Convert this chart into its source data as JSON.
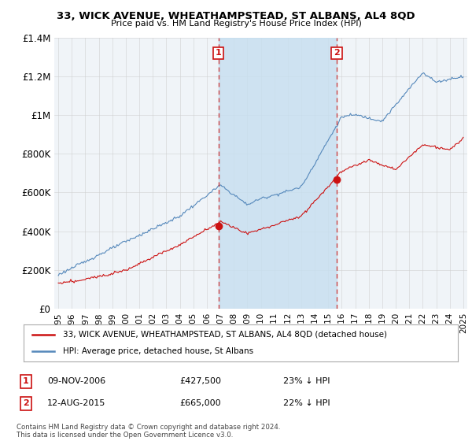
{
  "title": "33, WICK AVENUE, WHEATHAMPSTEAD, ST ALBANS, AL4 8QD",
  "subtitle": "Price paid vs. HM Land Registry's House Price Index (HPI)",
  "hpi_color": "#5588bb",
  "price_color": "#cc1111",
  "dashed_line_color": "#cc3333",
  "shaded_color": "#c8dff0",
  "background_color": "#ffffff",
  "plot_bg_color": "#f0f4f8",
  "grid_color": "#cccccc",
  "legend_label_price": "33, WICK AVENUE, WHEATHAMPSTEAD, ST ALBANS, AL4 8QD (detached house)",
  "legend_label_hpi": "HPI: Average price, detached house, St Albans",
  "annotation1_label": "1",
  "annotation1_date": "09-NOV-2006",
  "annotation1_price": "£427,500",
  "annotation1_pct": "23% ↓ HPI",
  "annotation1_year": 2006.87,
  "annotation1_value": 427500,
  "annotation2_label": "2",
  "annotation2_date": "12-AUG-2015",
  "annotation2_price": "£665,000",
  "annotation2_pct": "22% ↓ HPI",
  "annotation2_year": 2015.62,
  "annotation2_value": 665000,
  "footer": "Contains HM Land Registry data © Crown copyright and database right 2024.\nThis data is licensed under the Open Government Licence v3.0.",
  "ylim": [
    0,
    1400000
  ],
  "xlim": [
    1994.7,
    2025.3
  ]
}
